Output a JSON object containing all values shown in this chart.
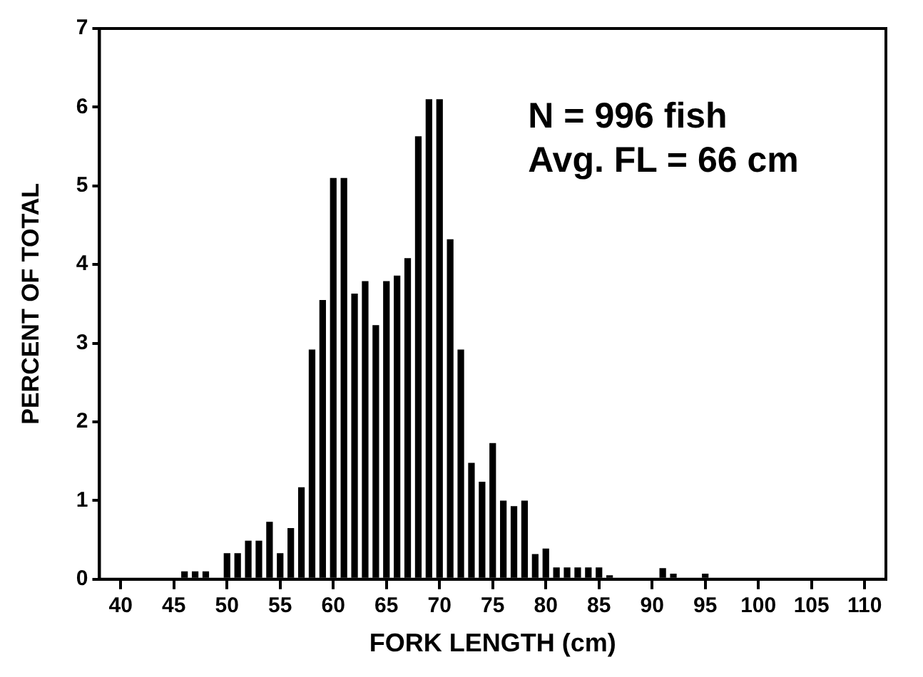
{
  "chart_data": {
    "type": "bar",
    "xlabel": "FORK LENGTH (cm)",
    "ylabel": "PERCENT OF TOTAL",
    "annotations": [
      "N = 996 fish",
      "Avg. FL = 66 cm"
    ],
    "x": [
      46,
      47,
      48,
      50,
      51,
      52,
      53,
      54,
      55,
      56,
      57,
      58,
      59,
      60,
      61,
      62,
      63,
      64,
      65,
      66,
      67,
      68,
      69,
      70,
      71,
      72,
      73,
      74,
      75,
      76,
      77,
      78,
      79,
      80,
      81,
      82,
      83,
      84,
      85,
      86,
      91,
      92,
      95
    ],
    "values": [
      0.1,
      0.1,
      0.1,
      0.33,
      0.33,
      0.49,
      0.49,
      0.73,
      0.33,
      0.65,
      1.17,
      2.92,
      3.55,
      5.1,
      5.1,
      3.63,
      3.79,
      3.23,
      3.79,
      3.86,
      4.08,
      5.63,
      6.1,
      6.1,
      4.32,
      2.92,
      1.48,
      1.24,
      1.73,
      1.0,
      0.93,
      1.0,
      0.32,
      0.39,
      0.15,
      0.15,
      0.15,
      0.15,
      0.15,
      0.05,
      0.14,
      0.07,
      0.07
    ],
    "color": "#000000",
    "xlim": [
      38,
      112
    ],
    "ylim": [
      0,
      7
    ],
    "xticks": [
      40,
      45,
      50,
      55,
      60,
      65,
      70,
      75,
      80,
      85,
      90,
      95,
      100,
      105,
      110
    ],
    "yticks": [
      0,
      1,
      2,
      3,
      4,
      5,
      6,
      7
    ],
    "grid": false,
    "legend": false
  }
}
